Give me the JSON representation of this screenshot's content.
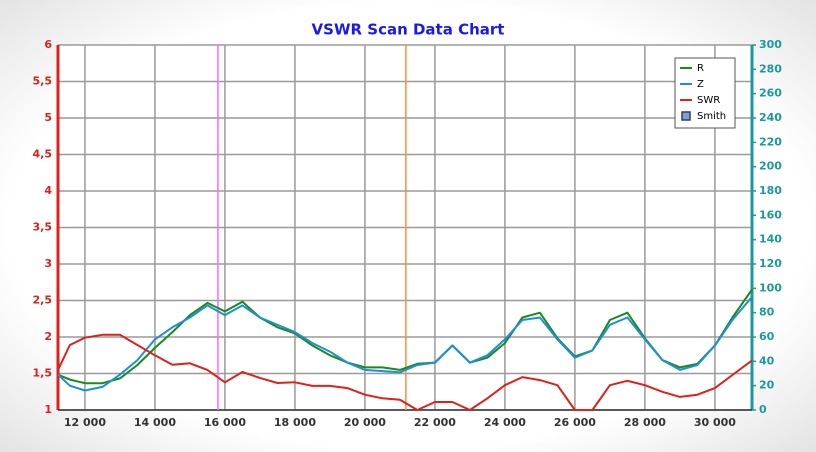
{
  "chart_data": {
    "type": "line",
    "title": "VSWR Scan Data Chart",
    "x": [
      11230,
      11570,
      12000,
      12500,
      13000,
      13500,
      14000,
      14500,
      15000,
      15500,
      16000,
      16500,
      17000,
      17500,
      18000,
      18500,
      19000,
      19500,
      20000,
      20500,
      21000,
      21500,
      22000,
      22500,
      23000,
      23500,
      24000,
      24500,
      25000,
      25500,
      26000,
      26500,
      27000,
      27500,
      28000,
      28500,
      29000,
      29500,
      30000,
      30500,
      31060
    ],
    "series": [
      {
        "name": "R",
        "color": "#1a8a1a",
        "axis": "y2",
        "values": [
          29,
          25,
          22,
          22,
          26,
          37,
          51,
          64,
          78,
          88,
          81,
          89,
          76,
          68,
          63,
          53,
          45,
          39,
          35,
          35,
          33,
          38,
          39,
          53,
          39,
          43,
          55,
          76,
          80,
          59,
          44,
          49,
          74,
          80,
          59,
          41,
          35,
          38,
          53,
          76,
          99
        ]
      },
      {
        "name": "Z",
        "color": "#1f8fd8",
        "axis": "y2",
        "values": [
          29,
          20,
          16,
          19,
          29,
          41,
          58,
          68,
          76,
          86,
          78,
          86,
          76,
          70,
          64,
          55,
          48,
          39,
          33,
          32,
          31,
          37,
          39,
          53,
          39,
          45,
          58,
          74,
          76,
          58,
          43,
          49,
          70,
          76,
          58,
          41,
          33,
          37,
          53,
          74,
          93
        ]
      },
      {
        "name": "SWR",
        "color": "#e0201a",
        "values": [
          1.55,
          1.89,
          1.99,
          2.03,
          2.03,
          1.89,
          1.75,
          1.62,
          1.64,
          1.55,
          1.38,
          1.52,
          1.44,
          1.37,
          1.38,
          1.33,
          1.33,
          1.3,
          1.21,
          1.16,
          1.14,
          1.0,
          1.11,
          1.11,
          1.0,
          1.16,
          1.34,
          1.45,
          1.41,
          1.34,
          1.0,
          1.0,
          1.34,
          1.4,
          1.34,
          1.25,
          1.18,
          1.21,
          1.3,
          1.48,
          1.68
        ]
      }
    ],
    "legend": {
      "position": "upper right",
      "extra_entries": [
        {
          "name": "Smith",
          "color": "#2a3f6a"
        }
      ]
    },
    "vlines": [
      {
        "value": 15800,
        "color": "#ff66ff"
      },
      {
        "value": 21170,
        "color": "#ff8c3a"
      }
    ],
    "xlim": [
      11230,
      31060
    ],
    "xticks": [
      {
        "value": 12000,
        "label": "12 000"
      },
      {
        "value": 14000,
        "label": "14 000"
      },
      {
        "value": 16000,
        "label": "16 000"
      },
      {
        "value": 18000,
        "label": "18 000"
      },
      {
        "value": 20000,
        "label": "20 000"
      },
      {
        "value": 22000,
        "label": "22 000"
      },
      {
        "value": 24000,
        "label": "24 000"
      },
      {
        "value": 26000,
        "label": "26 000"
      },
      {
        "value": 28000,
        "label": "28 000"
      },
      {
        "value": 30000,
        "label": "30 000"
      }
    ],
    "ylim": [
      1,
      6
    ],
    "yticks": [
      1,
      {
        "value": 1.5,
        "label": "1,5"
      },
      2,
      {
        "value": 2.5,
        "label": "2,5"
      },
      3,
      {
        "value": 3.5,
        "label": "3,5"
      },
      4,
      {
        "value": 4.5,
        "label": "4,5"
      },
      5,
      {
        "value": 5.5,
        "label": "5,5"
      },
      6
    ],
    "y2lim": [
      0,
      300
    ],
    "y2ticks": [
      0,
      20,
      40,
      60,
      80,
      100,
      120,
      140,
      160,
      180,
      200,
      220,
      240,
      260,
      280,
      300
    ],
    "grid": true
  }
}
